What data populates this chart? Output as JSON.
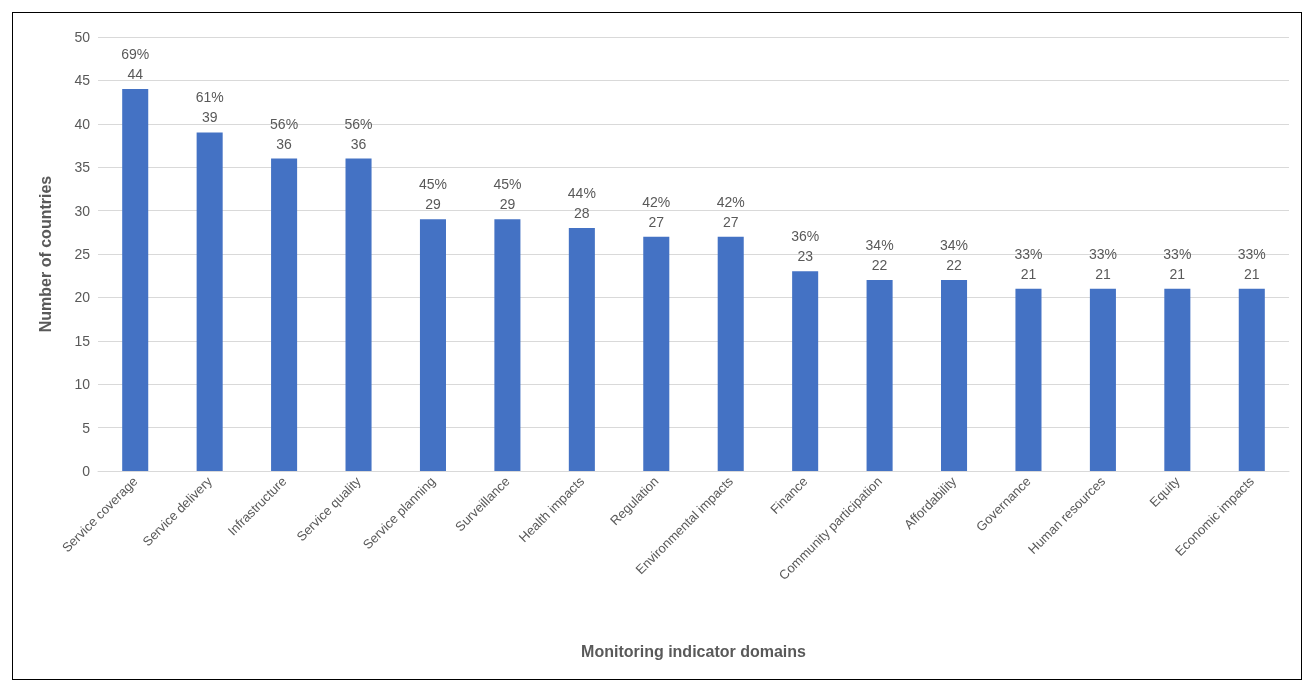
{
  "chart_data": {
    "type": "bar",
    "xlabel": "Monitoring indicator domains",
    "ylabel": "Number of countries",
    "categories": [
      "Service coverage",
      "Service delivery",
      "Infrastructure",
      "Service quality",
      "Service planning",
      "Surveillance",
      "Health impacts",
      "Regulation",
      "Environmental impacts",
      "Finance",
      "Community participation",
      "Affordability",
      "Governance",
      "Human resources",
      "Equity",
      "Economic impacts"
    ],
    "values": [
      44,
      39,
      36,
      36,
      29,
      29,
      28,
      27,
      27,
      23,
      22,
      22,
      21,
      21,
      21,
      21
    ],
    "value_labels": [
      "69%\n44",
      "61%\n39",
      "56%\n36",
      "56%\n36",
      "45%\n29",
      "45%\n29",
      "44%\n28",
      "42%\n27",
      "42%\n27",
      "36%\n23",
      "34%\n22",
      "34%\n22",
      "33%\n21",
      "33%\n21",
      "33%\n21",
      "33%\n21"
    ],
    "color": "#4472c4",
    "ylim": [
      0,
      50
    ],
    "yticks": [
      0,
      5,
      10,
      15,
      20,
      25,
      30,
      35,
      40,
      45,
      50
    ],
    "grid": "y"
  }
}
